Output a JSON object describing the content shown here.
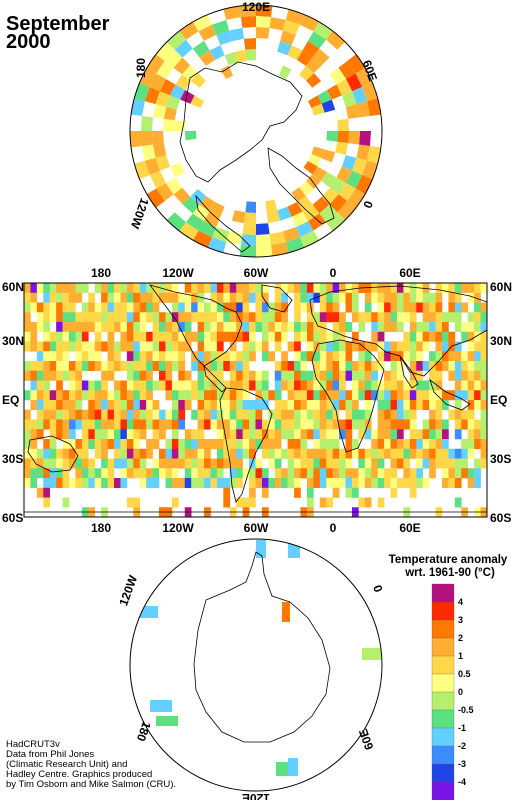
{
  "title": {
    "line1": "September",
    "line2": "2000"
  },
  "north_polar_labels": {
    "top": "120E",
    "left": "180",
    "right": "60E",
    "bottom_left": "120W",
    "bottom_right": "0"
  },
  "main_map": {
    "lat_labels": [
      "60N",
      "30N",
      "EQ",
      "30S",
      "60S"
    ],
    "lon_labels": [
      "180",
      "120W",
      "60W",
      "0",
      "60E"
    ]
  },
  "south_polar_labels": {
    "top_left": "120W",
    "top_right": "0",
    "bottom_left": "180",
    "bottom_right": "60E",
    "bottom": "120E"
  },
  "legend": {
    "title_line1": "Temperature anomaly",
    "title_line2": "wrt. 1961-90  (°C)",
    "ticks": [
      "4",
      "3",
      "2",
      "1",
      "0.5",
      "0",
      "-0.5",
      "-1",
      "-2",
      "-3",
      "-4"
    ],
    "colors": [
      "#b3127f",
      "#ff2a00",
      "#ff7800",
      "#ffae32",
      "#ffd84a",
      "#ffff80",
      "#b4f06e",
      "#5ce080",
      "#64d0ff",
      "#3c8cff",
      "#1e46e6",
      "#7a14e6"
    ]
  },
  "credit": {
    "lines": [
      "HadCRUT3v",
      "Data from Phil Jones",
      "(Climatic Research Unit) and",
      "Hadley Centre.  Graphics produced",
      "by Tim Osborn and Mike Salmon (CRU)."
    ]
  }
}
